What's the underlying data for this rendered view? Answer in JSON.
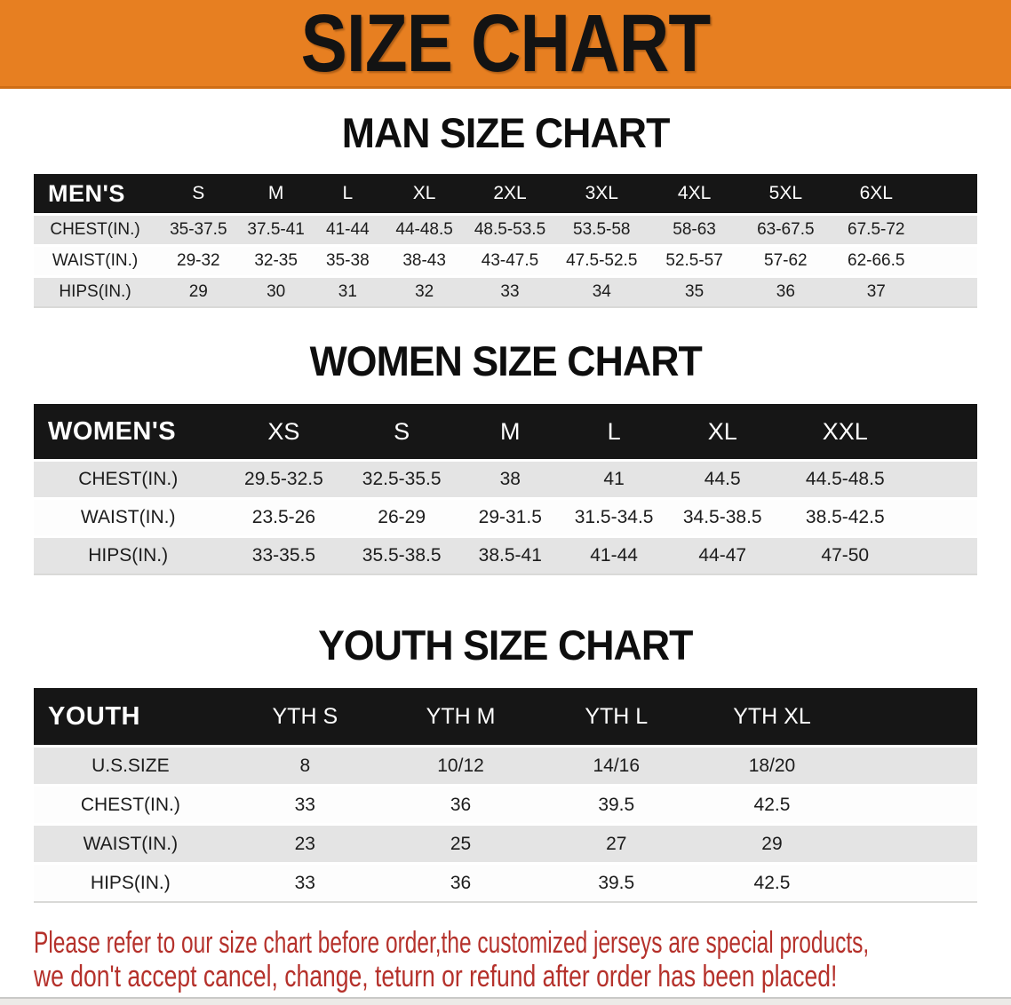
{
  "banner": {
    "title": "SIZE CHART",
    "bg": "#E77F21"
  },
  "sections": [
    {
      "heading": "MAN SIZE CHART",
      "table": {
        "header_label": "MEN'S",
        "columns": [
          "S",
          "M",
          "L",
          "XL",
          "2XL",
          "3XL",
          "4XL",
          "5XL",
          "6XL"
        ],
        "rows": [
          {
            "label": "CHEST(IN.)",
            "values": [
              "35-37.5",
              "37.5-41",
              "41-44",
              "44-48.5",
              "48.5-53.5",
              "53.5-58",
              "58-63",
              "63-67.5",
              "67.5-72"
            ]
          },
          {
            "label": "WAIST(IN.)",
            "values": [
              "29-32",
              "32-35",
              "35-38",
              "38-43",
              "43-47.5",
              "47.5-52.5",
              "52.5-57",
              "57-62",
              "62-66.5"
            ]
          },
          {
            "label": "HIPS(IN.)",
            "values": [
              "29",
              "30",
              "31",
              "32",
              "33",
              "34",
              "35",
              "36",
              "37"
            ]
          }
        ]
      }
    },
    {
      "heading": "WOMEN SIZE CHART",
      "table": {
        "header_label": "WOMEN'S",
        "columns": [
          "XS",
          "S",
          "M",
          "L",
          "XL",
          "XXL"
        ],
        "rows": [
          {
            "label": "CHEST(IN.)",
            "values": [
              "29.5-32.5",
              "32.5-35.5",
              "38",
              "41",
              "44.5",
              "44.5-48.5"
            ]
          },
          {
            "label": "WAIST(IN.)",
            "values": [
              "23.5-26",
              "26-29",
              "29-31.5",
              "31.5-34.5",
              "34.5-38.5",
              "38.5-42.5"
            ]
          },
          {
            "label": "HIPS(IN.)",
            "values": [
              "33-35.5",
              "35.5-38.5",
              "38.5-41",
              "41-44",
              "44-47",
              "47-50"
            ]
          }
        ]
      }
    },
    {
      "heading": "YOUTH SIZE CHART",
      "table": {
        "header_label": "YOUTH",
        "columns": [
          "YTH S",
          "YTH M",
          "YTH L",
          "YTH XL"
        ],
        "rows": [
          {
            "label": "U.S.SIZE",
            "values": [
              "8",
              "10/12",
              "14/16",
              "18/20"
            ]
          },
          {
            "label": "CHEST(IN.)",
            "values": [
              "33",
              "36",
              "39.5",
              "42.5"
            ]
          },
          {
            "label": "WAIST(IN.)",
            "values": [
              "23",
              "25",
              "27",
              "29"
            ]
          },
          {
            "label": "HIPS(IN.)",
            "values": [
              "33",
              "36",
              "39.5",
              "42.5"
            ]
          }
        ]
      }
    }
  ],
  "disclaimer": {
    "line1": "Please refer to our size chart before order,the customized jerseys are special products,",
    "line2": "we don't accept cancel, change, teturn or refund after order has been placed!",
    "color": "#B5312B"
  }
}
